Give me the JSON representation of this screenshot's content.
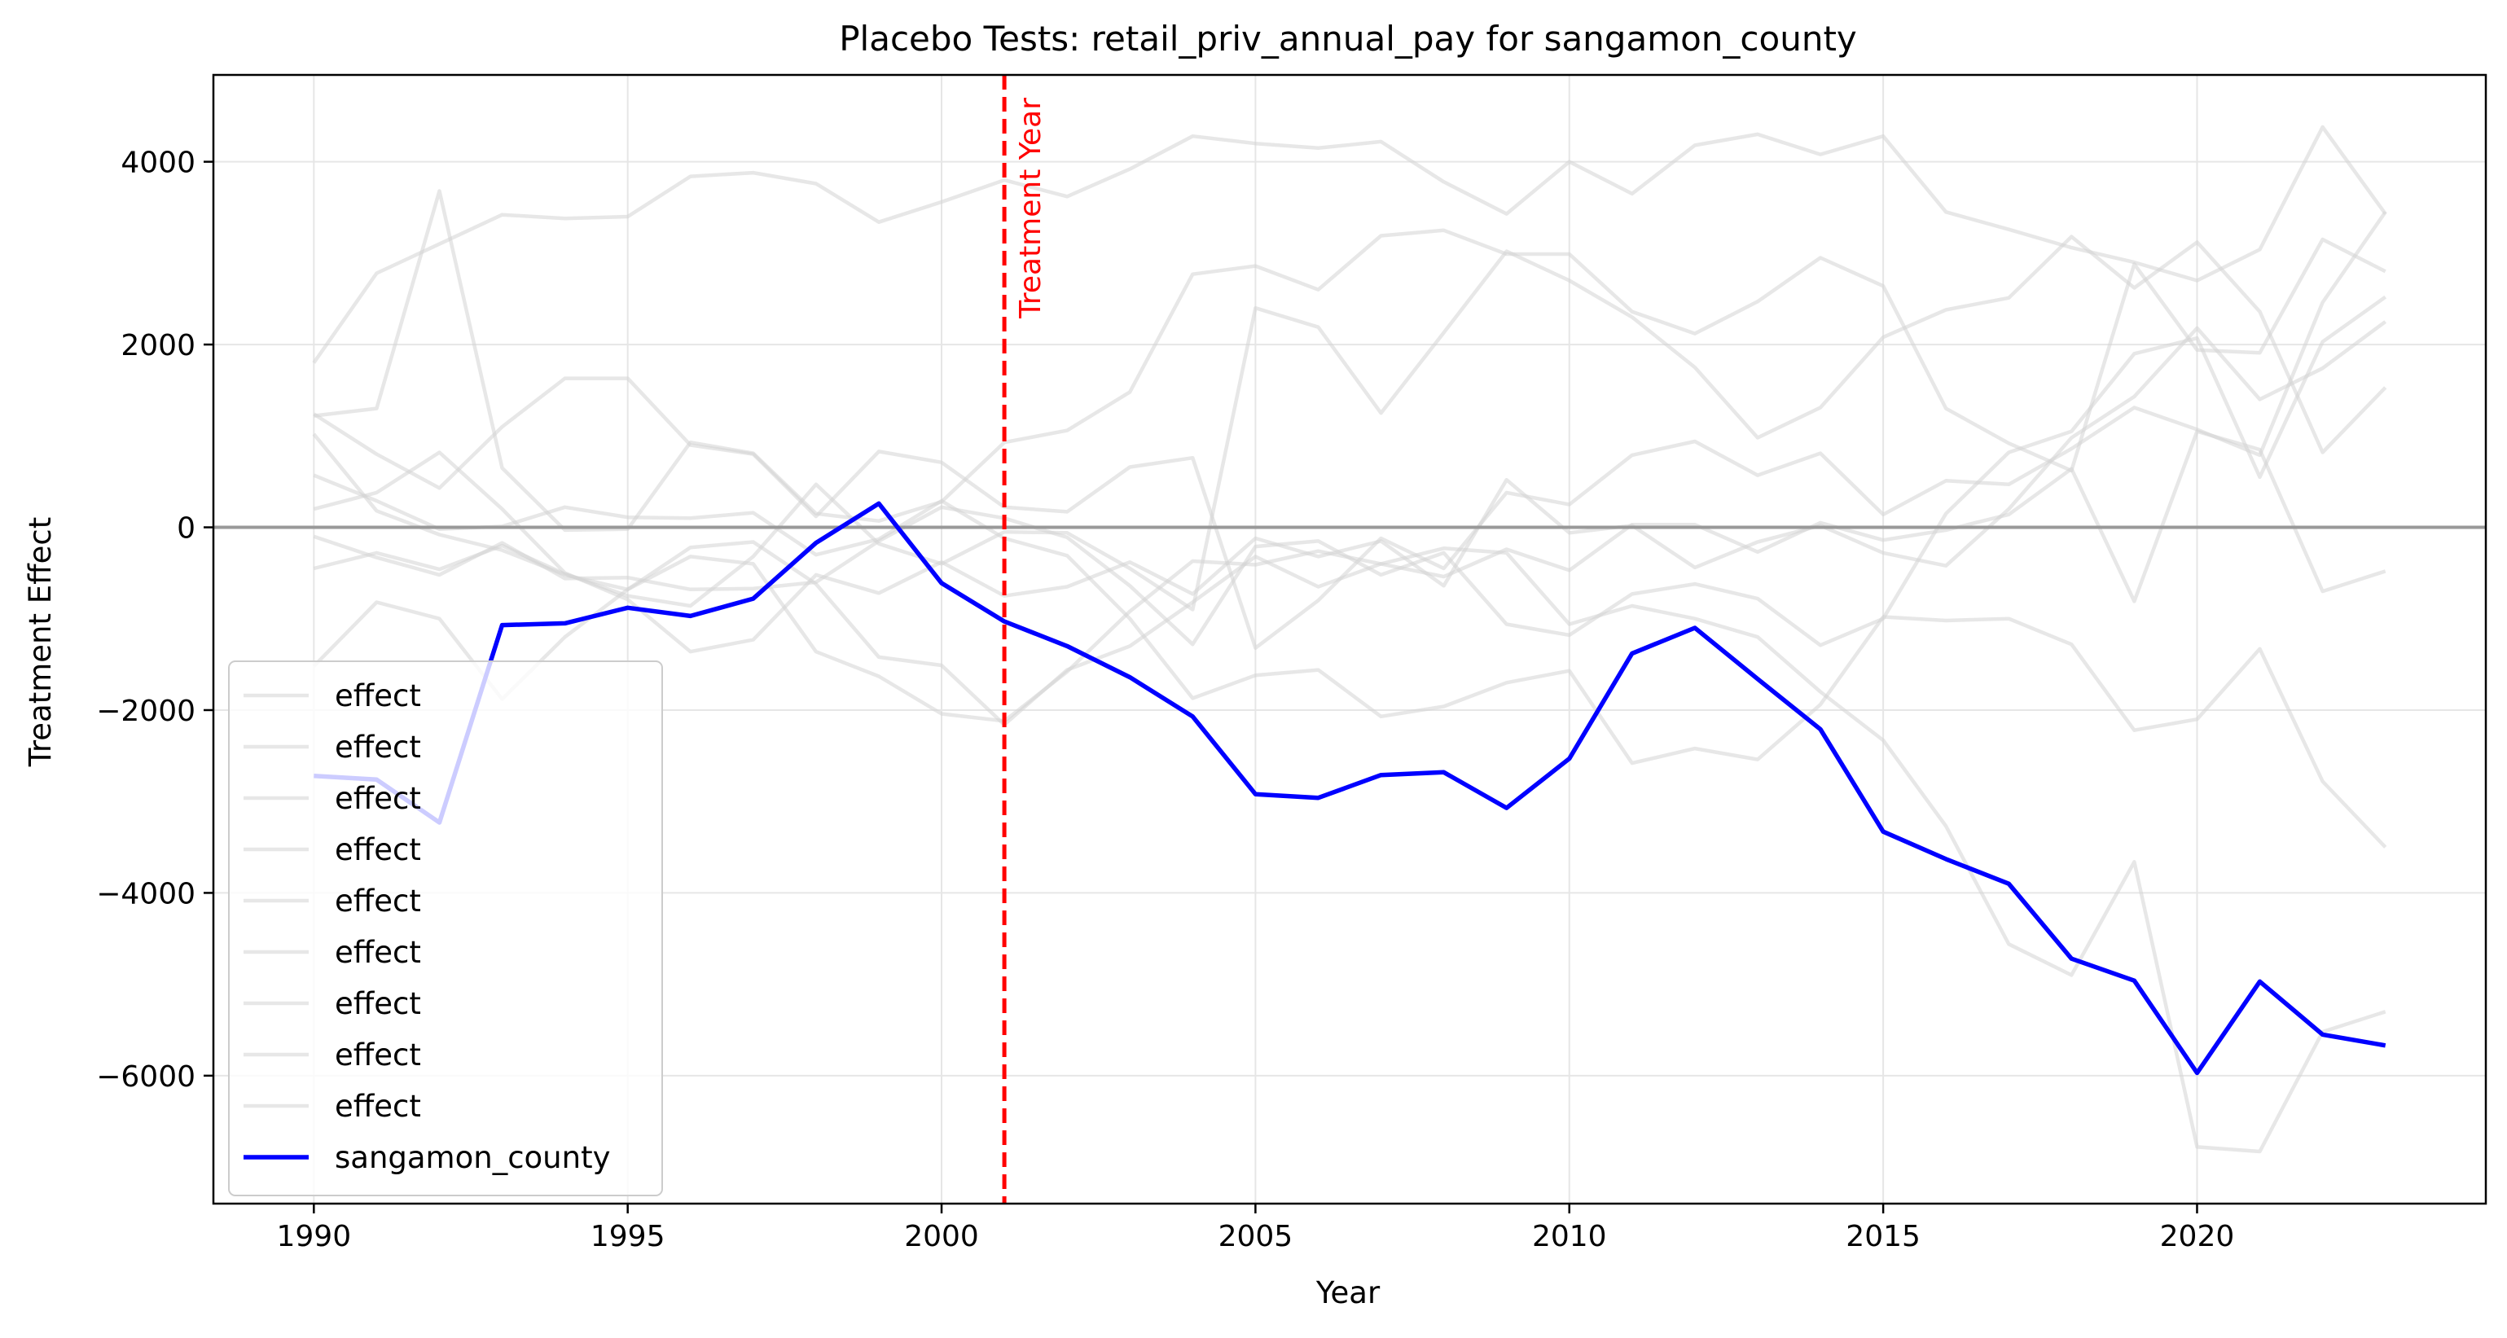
{
  "chart_data": {
    "type": "line",
    "title": "Placebo Tests: retail_priv_annual_pay for sangamon_county",
    "xlabel": "Year",
    "ylabel": "Treatment Effect",
    "xlim": [
      1988.4,
      2024.6
    ],
    "ylim": [
      -7400,
      4950
    ],
    "xticks": [
      1990,
      1995,
      2000,
      2005,
      2010,
      2015,
      2020
    ],
    "xtick_labels": [
      "1990",
      "1995",
      "2000",
      "2005",
      "2010",
      "2015",
      "2020"
    ],
    "yticks": [
      -6000,
      -4000,
      -2000,
      0,
      2000,
      4000
    ],
    "ytick_labels": [
      "−6000",
      "−4000",
      "−2000",
      "0",
      "2000",
      "4000"
    ],
    "grid": true,
    "zero_line": 0,
    "treatment_year": 2001,
    "treatment_label": "Treatment Year",
    "legend_position": "lower-left",
    "x": [
      1990,
      1991,
      1992,
      1993,
      1994,
      1995,
      1996,
      1997,
      1998,
      1999,
      2000,
      2001,
      2002,
      2003,
      2004,
      2005,
      2006,
      2007,
      2008,
      2009,
      2010,
      2011,
      2012,
      2013,
      2014,
      2015,
      2016,
      2017,
      2018,
      2019,
      2020,
      2021,
      2022,
      2023
    ],
    "placebo_series": [
      {
        "name": "effect",
        "values": [
          1800,
          2780,
          3100,
          3420,
          3380,
          3400,
          3840,
          3880,
          3760,
          3340,
          3560,
          3800,
          3620,
          3920,
          4280,
          4200,
          4150,
          4220,
          3780,
          3430,
          4000,
          3650,
          4180,
          4300,
          4080,
          4280,
          3450,
          3260,
          3060,
          2900,
          2700,
          3040,
          4380,
          3430
        ]
      },
      {
        "name": "effect",
        "values": [
          1220,
          1300,
          3680,
          650,
          -30,
          -20,
          930,
          810,
          150,
          70,
          280,
          930,
          1060,
          1480,
          2770,
          2860,
          2600,
          3190,
          3250,
          2990,
          2990,
          2360,
          2120,
          2470,
          2950,
          2640,
          1300,
          920,
          620,
          2880,
          1940,
          1910,
          3150,
          2800
        ]
      },
      {
        "name": "effect",
        "values": [
          -450,
          -280,
          -460,
          -200,
          -510,
          -750,
          -860,
          -320,
          470,
          -180,
          -400,
          -50,
          -60,
          -450,
          -900,
          2400,
          2190,
          1250,
          2130,
          3020,
          2700,
          2300,
          1750,
          980,
          1310,
          2080,
          2380,
          2510,
          3180,
          2620,
          3120,
          2360,
          820,
          1530
        ]
      },
      {
        "name": "effect",
        "values": [
          1240,
          800,
          430,
          1100,
          1630,
          1630,
          900,
          800,
          120,
          830,
          710,
          220,
          170,
          660,
          760,
          -1320,
          -800,
          -120,
          -450,
          380,
          250,
          790,
          940,
          570,
          810,
          140,
          510,
          470,
          860,
          1310,
          1070,
          790,
          2460,
          3450
        ]
      },
      {
        "name": "effect",
        "values": [
          200,
          380,
          820,
          200,
          -500,
          -790,
          -1360,
          -1230,
          -520,
          -720,
          -380,
          -750,
          -650,
          -380,
          -730,
          -120,
          -320,
          -150,
          -640,
          520,
          -60,
          20,
          -440,
          -160,
          20,
          -280,
          -420,
          200,
          980,
          1430,
          2180,
          1400,
          1740,
          2250
        ]
      },
      {
        "name": "effect",
        "values": [
          -100,
          -330,
          -520,
          -170,
          -560,
          -550,
          -680,
          -670,
          -600,
          -150,
          220,
          100,
          -110,
          -640,
          -1280,
          -210,
          -150,
          -520,
          -280,
          -1060,
          -1180,
          -730,
          -620,
          -780,
          -1290,
          -1000,
          150,
          820,
          1050,
          1900,
          2070,
          550,
          2030,
          2520
        ]
      },
      {
        "name": "effect",
        "values": [
          570,
          290,
          -20,
          10,
          220,
          110,
          100,
          160,
          -300,
          -130,
          290,
          -120,
          -310,
          -1000,
          -1870,
          -1620,
          -1560,
          -2070,
          -1960,
          -1700,
          -1570,
          -2580,
          -2420,
          -2540,
          -1940,
          -980,
          -1020,
          -1000,
          -1280,
          -2220,
          -2100,
          -1330,
          -2780,
          -3500
        ]
      },
      {
        "name": "effect",
        "values": [
          -1520,
          -820,
          -1000,
          -1880,
          -1200,
          -680,
          -220,
          -160,
          -620,
          -1420,
          -1510,
          -2160,
          -1560,
          -1300,
          -820,
          -320,
          -650,
          -400,
          -230,
          -280,
          -1060,
          -860,
          -1000,
          -1200,
          -1800,
          -2330,
          -3270,
          -4560,
          -4900,
          -3660,
          -6780,
          -6830,
          -5520,
          -5300
        ]
      },
      {
        "name": "effect",
        "values": [
          1020,
          180,
          -80,
          -250,
          -520,
          -680,
          -320,
          -400,
          -1360,
          -1630,
          -2040,
          -2120,
          -1580,
          -920,
          -370,
          -410,
          -260,
          -400,
          -540,
          -240,
          -470,
          30,
          30,
          -270,
          50,
          -140,
          -30,
          140,
          640,
          -810,
          1050,
          850,
          -700,
          -480
        ]
      }
    ],
    "series": [
      {
        "name": "sangamon_county",
        "color": "#0000ff",
        "values": [
          -2720,
          -2760,
          -3230,
          -1070,
          -1050,
          -880,
          -970,
          -780,
          -170,
          260,
          -610,
          -1030,
          -1300,
          -1640,
          -2070,
          -2920,
          -2960,
          -2710,
          -2680,
          -3070,
          -2530,
          -1380,
          -1100,
          -1660,
          -2210,
          -3330,
          -3630,
          -3900,
          -4720,
          -4960,
          -5970,
          -4970,
          -5550,
          -5670
        ]
      }
    ],
    "colors": {
      "placebo": "#d3d3d3",
      "treated": "#0000ff",
      "treatment_line": "#ff0000",
      "zero_line": "#999999",
      "grid": "#e6e6e6"
    }
  }
}
